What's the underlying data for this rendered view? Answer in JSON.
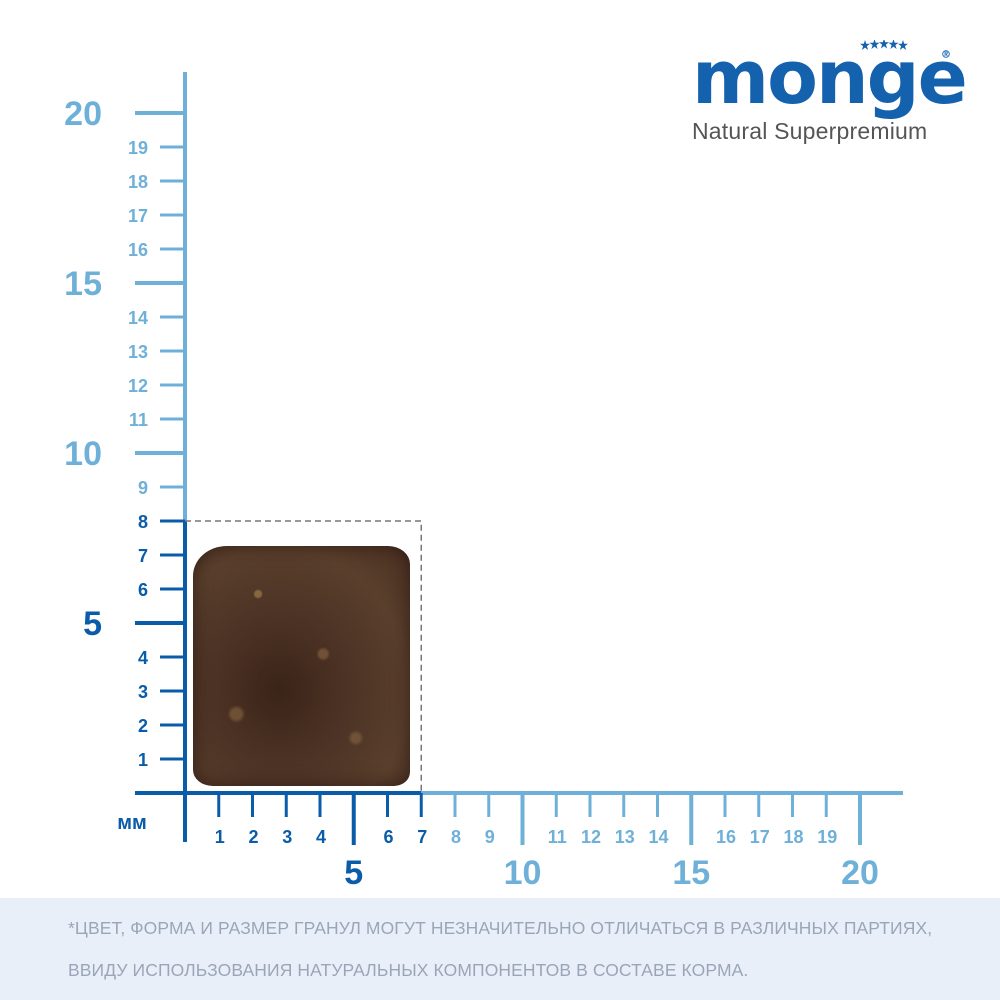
{
  "brand": {
    "name": "Monge",
    "tagline": "Natural Superpremium",
    "color": "#1462ad"
  },
  "ruler": {
    "unit_label": "мм",
    "dark_color": "#0b5ca8",
    "light_color": "#6fb0d8",
    "y_minor_labels": [
      "1",
      "2",
      "3",
      "4",
      "6",
      "7",
      "8",
      "9",
      "11",
      "12",
      "13",
      "14",
      "16",
      "17",
      "18",
      "19"
    ],
    "y_major_labels": [
      "5",
      "10",
      "15",
      "20"
    ],
    "x_minor_labels": [
      "1",
      "2",
      "3",
      "4",
      "6",
      "7",
      "8",
      "9",
      "11",
      "12",
      "13",
      "14",
      "16",
      "17",
      "18",
      "19"
    ],
    "x_major_labels": [
      "5",
      "10",
      "15",
      "20"
    ],
    "max_mm": 20
  },
  "kibble_size_mm": {
    "width": 7,
    "height": 8
  },
  "footer": {
    "line1": "*ЦВЕТ, ФОРМА И РАЗМЕР ГРАНУЛ МОГУТ НЕЗНАЧИТЕЛЬНО ОТЛИЧАТЬСЯ В РАЗЛИЧНЫХ ПАРТИЯХ,",
    "line2": "ВВИДУ ИСПОЛЬЗОВАНИЯ НАТУРАЛЬНЫХ КОМПОНЕНТОВ В СОСТАВЕ КОРМА."
  }
}
